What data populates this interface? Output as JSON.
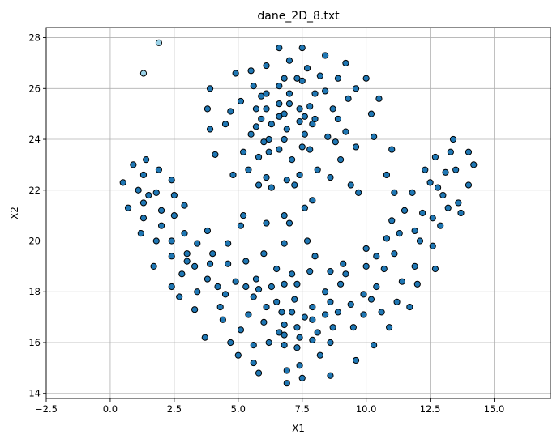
{
  "chart_data": {
    "type": "scatter",
    "title": "dane_2D_8.txt",
    "xlabel": "X1",
    "ylabel": "X2",
    "xlim": [
      -2.5,
      17.2
    ],
    "ylim": [
      13.8,
      28.4
    ],
    "xticks": [
      "−2.5",
      "0.0",
      "2.5",
      "5.0",
      "7.5",
      "10.0",
      "12.5",
      "15.0"
    ],
    "xtick_values": [
      -2.5,
      0.0,
      2.5,
      5.0,
      7.5,
      10.0,
      12.5,
      15.0
    ],
    "yticks": [
      "14",
      "16",
      "18",
      "20",
      "22",
      "24",
      "26",
      "28"
    ],
    "ytick_values": [
      14,
      16,
      18,
      20,
      22,
      24,
      26,
      28
    ],
    "grid": true,
    "colors": {
      "main": "#1f77b4",
      "outlier": "#9ad2e8"
    },
    "series": [
      {
        "color": "#1f77b4",
        "points": [
          [
            0.5,
            22.3
          ],
          [
            0.7,
            21.3
          ],
          [
            0.9,
            23.0
          ],
          [
            1.1,
            22.0
          ],
          [
            1.2,
            20.3
          ],
          [
            1.3,
            21.5
          ],
          [
            1.3,
            20.9
          ],
          [
            1.3,
            22.6
          ],
          [
            1.4,
            23.2
          ],
          [
            1.5,
            21.8
          ],
          [
            1.7,
            19.0
          ],
          [
            1.8,
            20.0
          ],
          [
            1.8,
            21.9
          ],
          [
            1.9,
            22.8
          ],
          [
            2.0,
            20.6
          ],
          [
            2.0,
            21.2
          ],
          [
            2.4,
            22.4
          ],
          [
            2.4,
            20.0
          ],
          [
            2.4,
            19.4
          ],
          [
            2.4,
            18.2
          ],
          [
            2.5,
            21.8
          ],
          [
            2.5,
            21.0
          ],
          [
            2.7,
            17.8
          ],
          [
            2.8,
            18.7
          ],
          [
            2.9,
            21.4
          ],
          [
            2.9,
            20.3
          ],
          [
            3.0,
            19.5
          ],
          [
            3.0,
            19.2
          ],
          [
            3.3,
            19.0
          ],
          [
            3.3,
            17.3
          ],
          [
            3.4,
            19.9
          ],
          [
            3.4,
            18.0
          ],
          [
            3.7,
            16.2
          ],
          [
            3.8,
            20.4
          ],
          [
            3.8,
            18.5
          ],
          [
            3.9,
            19.1
          ],
          [
            4.0,
            19.5
          ],
          [
            4.2,
            18.2
          ],
          [
            4.3,
            17.4
          ],
          [
            4.4,
            16.9
          ],
          [
            4.5,
            17.9
          ],
          [
            4.6,
            19.9
          ],
          [
            4.6,
            19.1
          ],
          [
            4.7,
            16.0
          ],
          [
            4.9,
            18.4
          ],
          [
            5.0,
            15.5
          ],
          [
            5.1,
            16.5
          ],
          [
            5.1,
            20.6
          ],
          [
            5.2,
            21.0
          ],
          [
            5.3,
            19.2
          ],
          [
            5.3,
            18.2
          ],
          [
            5.4,
            17.1
          ],
          [
            5.6,
            15.9
          ],
          [
            5.6,
            15.2
          ],
          [
            5.6,
            17.8
          ],
          [
            5.7,
            18.5
          ],
          [
            5.8,
            14.8
          ],
          [
            5.8,
            18.1
          ],
          [
            6.0,
            19.5
          ],
          [
            6.0,
            16.8
          ],
          [
            6.1,
            17.4
          ],
          [
            6.1,
            20.7
          ],
          [
            6.2,
            16.0
          ],
          [
            6.3,
            18.2
          ],
          [
            6.5,
            18.9
          ],
          [
            6.5,
            17.6
          ],
          [
            6.6,
            16.4
          ],
          [
            6.7,
            17.2
          ],
          [
            6.8,
            18.3
          ],
          [
            6.8,
            16.7
          ],
          [
            6.8,
            15.9
          ],
          [
            6.8,
            19.9
          ],
          [
            6.8,
            21.0
          ],
          [
            6.8,
            16.3
          ],
          [
            6.9,
            14.9
          ],
          [
            6.9,
            14.4
          ],
          [
            7.0,
            20.7
          ],
          [
            7.1,
            17.2
          ],
          [
            7.1,
            18.7
          ],
          [
            7.2,
            17.7
          ],
          [
            7.3,
            16.6
          ],
          [
            7.3,
            18.3
          ],
          [
            7.3,
            15.8
          ],
          [
            7.4,
            15.1
          ],
          [
            7.4,
            16.2
          ],
          [
            7.5,
            14.6
          ],
          [
            7.6,
            17.0
          ],
          [
            7.7,
            20.0
          ],
          [
            7.8,
            18.8
          ],
          [
            7.9,
            17.4
          ],
          [
            7.9,
            16.9
          ],
          [
            7.9,
            16.1
          ],
          [
            8.0,
            19.4
          ],
          [
            8.1,
            16.4
          ],
          [
            8.2,
            15.5
          ],
          [
            8.4,
            17.1
          ],
          [
            8.4,
            18.0
          ],
          [
            8.6,
            18.8
          ],
          [
            8.6,
            17.6
          ],
          [
            8.6,
            16.0
          ],
          [
            8.7,
            16.6
          ],
          [
            8.6,
            14.7
          ],
          [
            8.9,
            17.2
          ],
          [
            9.0,
            18.3
          ],
          [
            9.1,
            19.1
          ],
          [
            9.2,
            18.7
          ],
          [
            9.4,
            17.5
          ],
          [
            9.5,
            16.6
          ],
          [
            9.6,
            15.3
          ],
          [
            9.9,
            17.9
          ],
          [
            9.9,
            17.1
          ],
          [
            10.0,
            19.7
          ],
          [
            10.0,
            19.0
          ],
          [
            10.2,
            17.7
          ],
          [
            10.3,
            15.9
          ],
          [
            10.4,
            19.4
          ],
          [
            10.4,
            18.2
          ],
          [
            10.6,
            17.2
          ],
          [
            10.7,
            18.9
          ],
          [
            10.8,
            20.1
          ],
          [
            10.9,
            16.6
          ],
          [
            11.0,
            20.8
          ],
          [
            11.1,
            19.5
          ],
          [
            11.2,
            17.6
          ],
          [
            11.3,
            20.3
          ],
          [
            11.4,
            18.4
          ],
          [
            11.5,
            21.2
          ],
          [
            11.7,
            17.4
          ],
          [
            11.8,
            21.9
          ],
          [
            11.9,
            20.4
          ],
          [
            11.9,
            19.0
          ],
          [
            12.0,
            18.3
          ],
          [
            12.1,
            20.0
          ],
          [
            12.2,
            21.1
          ],
          [
            12.3,
            22.8
          ],
          [
            12.5,
            22.3
          ],
          [
            12.6,
            20.9
          ],
          [
            12.6,
            19.8
          ],
          [
            12.7,
            18.9
          ],
          [
            12.7,
            23.3
          ],
          [
            12.8,
            22.1
          ],
          [
            12.9,
            20.6
          ],
          [
            13.0,
            21.8
          ],
          [
            13.1,
            22.7
          ],
          [
            13.2,
            21.3
          ],
          [
            13.3,
            23.5
          ],
          [
            13.4,
            24.0
          ],
          [
            13.5,
            22.8
          ],
          [
            13.6,
            21.5
          ],
          [
            13.7,
            21.1
          ],
          [
            14.0,
            22.2
          ],
          [
            14.0,
            23.5
          ],
          [
            14.2,
            23.0
          ],
          [
            3.8,
            25.2
          ],
          [
            3.9,
            26.0
          ],
          [
            3.9,
            24.4
          ],
          [
            4.1,
            23.4
          ],
          [
            4.5,
            24.6
          ],
          [
            4.7,
            25.1
          ],
          [
            4.8,
            22.6
          ],
          [
            4.9,
            26.6
          ],
          [
            5.1,
            25.5
          ],
          [
            5.2,
            23.5
          ],
          [
            5.4,
            22.8
          ],
          [
            5.5,
            24.2
          ],
          [
            5.5,
            26.7
          ],
          [
            5.6,
            26.1
          ],
          [
            5.7,
            25.2
          ],
          [
            5.7,
            24.5
          ],
          [
            5.8,
            23.3
          ],
          [
            5.8,
            22.2
          ],
          [
            5.9,
            25.7
          ],
          [
            5.9,
            24.8
          ],
          [
            6.0,
            23.9
          ],
          [
            6.1,
            26.9
          ],
          [
            6.1,
            25.8
          ],
          [
            6.1,
            25.2
          ],
          [
            6.1,
            22.5
          ],
          [
            6.2,
            24.0
          ],
          [
            6.2,
            23.5
          ],
          [
            6.3,
            24.6
          ],
          [
            6.3,
            22.1
          ],
          [
            6.6,
            27.6
          ],
          [
            6.6,
            26.1
          ],
          [
            6.6,
            25.4
          ],
          [
            6.6,
            24.9
          ],
          [
            6.6,
            23.6
          ],
          [
            6.8,
            26.4
          ],
          [
            6.8,
            25.0
          ],
          [
            6.8,
            24.0
          ],
          [
            6.9,
            22.4
          ],
          [
            6.9,
            24.4
          ],
          [
            7.0,
            27.1
          ],
          [
            7.0,
            25.8
          ],
          [
            7.0,
            25.4
          ],
          [
            7.1,
            23.2
          ],
          [
            7.2,
            22.2
          ],
          [
            7.3,
            26.4
          ],
          [
            7.4,
            25.2
          ],
          [
            7.4,
            24.7
          ],
          [
            7.4,
            22.6
          ],
          [
            7.5,
            27.6
          ],
          [
            7.5,
            26.3
          ],
          [
            7.5,
            23.7
          ],
          [
            7.6,
            21.3
          ],
          [
            7.6,
            24.9
          ],
          [
            7.6,
            24.2
          ],
          [
            7.7,
            26.8
          ],
          [
            7.8,
            25.3
          ],
          [
            7.8,
            23.6
          ],
          [
            7.9,
            24.6
          ],
          [
            7.9,
            21.6
          ],
          [
            8.0,
            24.8
          ],
          [
            8.0,
            25.8
          ],
          [
            8.1,
            22.8
          ],
          [
            8.2,
            26.5
          ],
          [
            8.4,
            27.3
          ],
          [
            8.4,
            25.9
          ],
          [
            8.5,
            24.1
          ],
          [
            8.6,
            22.5
          ],
          [
            8.7,
            25.2
          ],
          [
            8.8,
            23.9
          ],
          [
            8.9,
            26.4
          ],
          [
            8.9,
            24.8
          ],
          [
            9.0,
            23.2
          ],
          [
            9.2,
            24.3
          ],
          [
            9.2,
            27.0
          ],
          [
            9.3,
            25.6
          ],
          [
            9.4,
            22.2
          ],
          [
            9.6,
            26.0
          ],
          [
            9.6,
            23.7
          ],
          [
            9.7,
            21.9
          ],
          [
            10.0,
            26.4
          ],
          [
            10.2,
            25.0
          ],
          [
            10.3,
            24.1
          ],
          [
            10.5,
            25.6
          ],
          [
            10.8,
            22.6
          ],
          [
            11.0,
            23.6
          ],
          [
            11.1,
            21.9
          ]
        ]
      },
      {
        "color": "#9ad2e8",
        "points": [
          [
            1.3,
            26.6
          ],
          [
            1.9,
            27.8
          ]
        ]
      }
    ]
  }
}
